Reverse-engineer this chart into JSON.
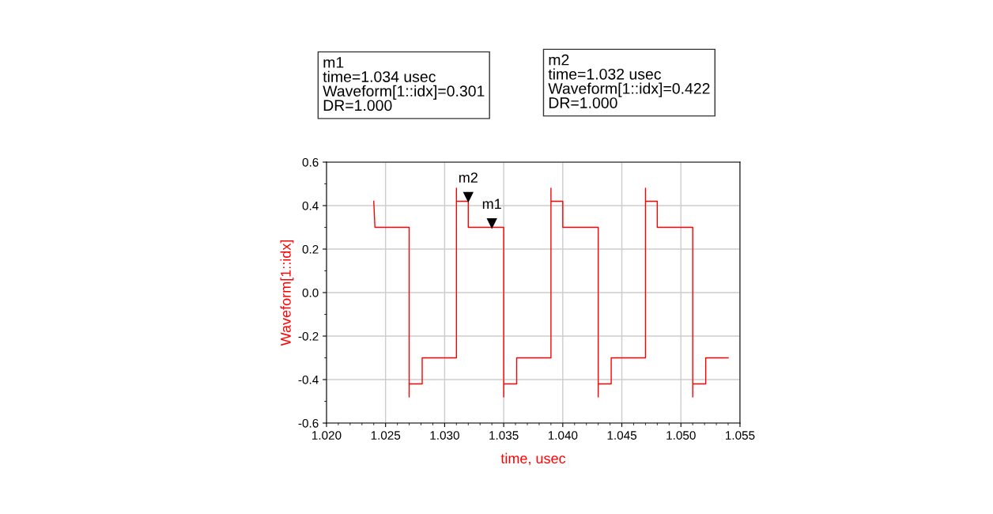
{
  "chart_data": {
    "type": "line",
    "xlabel": "time, usec",
    "ylabel": "Waveform[1::idx]",
    "series": [
      {
        "color": "#ff0000",
        "x": [
          1.024,
          1.0241,
          1.027,
          1.027,
          1.027,
          1.0281,
          1.0281,
          1.031,
          1.031,
          1.031,
          1.032,
          1.032,
          1.035,
          1.035,
          1.035,
          1.0361,
          1.0361,
          1.039,
          1.039,
          1.039,
          1.04,
          1.04,
          1.043,
          1.043,
          1.043,
          1.0441,
          1.0441,
          1.047,
          1.047,
          1.047,
          1.048,
          1.048,
          1.051,
          1.051,
          1.051,
          1.0521,
          1.0521,
          1.054
        ],
        "values": [
          0.42,
          0.3,
          0.3,
          -0.48,
          -0.42,
          -0.42,
          -0.3,
          -0.3,
          0.48,
          0.42,
          0.42,
          0.3,
          0.3,
          -0.48,
          -0.42,
          -0.42,
          -0.3,
          -0.3,
          0.48,
          0.42,
          0.42,
          0.3,
          0.3,
          -0.48,
          -0.42,
          -0.42,
          -0.3,
          -0.3,
          0.48,
          0.42,
          0.42,
          0.3,
          0.3,
          -0.48,
          -0.42,
          -0.42,
          -0.3,
          -0.3
        ]
      }
    ],
    "xlim": [
      1.02,
      1.055
    ],
    "xticks": [
      {
        "value": 1.02,
        "label": "1.020"
      },
      {
        "value": 1.025,
        "label": "1.025"
      },
      {
        "value": 1.03,
        "label": "1.030"
      },
      {
        "value": 1.035,
        "label": "1.035"
      },
      {
        "value": 1.04,
        "label": "1.040"
      },
      {
        "value": 1.045,
        "label": "1.045"
      },
      {
        "value": 1.05,
        "label": "1.050"
      },
      {
        "value": 1.055,
        "label": "1.055"
      }
    ],
    "ylim": [
      -0.6,
      0.6
    ],
    "yticks": [
      {
        "value": -0.6,
        "label": "-0.6"
      },
      {
        "value": -0.4,
        "label": "-0.4"
      },
      {
        "value": -0.2,
        "label": "-0.2"
      },
      {
        "value": 0,
        "label": "0.0"
      },
      {
        "value": 0.2,
        "label": "0.2"
      },
      {
        "value": 0.4,
        "label": "0.4"
      },
      {
        "value": 0.6,
        "label": "0.6"
      }
    ],
    "grid": true,
    "marker": "none",
    "line_style": "solid",
    "annotations": [
      "m1\ntime=1.034 usec\nWaveform[1::idx]=0.301\nDR=1.000",
      "m2\ntime=1.032 usec\nWaveform[1::idx]=0.422\nDR=1.000",
      {
        "text": "m2",
        "x": 1.032,
        "y": 0.422
      },
      {
        "text": "m1",
        "x": 1.034,
        "y": 0.301
      }
    ]
  }
}
